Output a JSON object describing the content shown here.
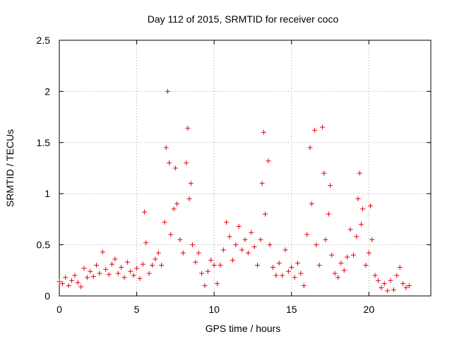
{
  "chart_data": {
    "type": "scatter",
    "title": "Day 112 of 2015, SRMTID for receiver coco",
    "xlabel": "GPS time / hours",
    "ylabel": "SRMTID / TECUs",
    "xlim": [
      0,
      24
    ],
    "ylim": [
      0,
      2.5
    ],
    "xticks": [
      0,
      5,
      10,
      15,
      20
    ],
    "xtick_labels": [
      "0",
      "5",
      "10",
      "15",
      "20"
    ],
    "yticks": [
      0,
      0.5,
      1,
      1.5,
      2,
      2.5
    ],
    "ytick_labels": [
      "0",
      "0.5",
      "1",
      "1.5",
      "2",
      "2.5"
    ],
    "grid": true,
    "marker": "+",
    "series": [
      {
        "name": "SRMTID",
        "color": "#e8000b",
        "points": [
          [
            0.0,
            0.14
          ],
          [
            0.2,
            0.12
          ],
          [
            0.4,
            0.18
          ],
          [
            0.6,
            0.1
          ],
          [
            0.8,
            0.15
          ],
          [
            1.0,
            0.2
          ],
          [
            1.2,
            0.13
          ],
          [
            1.4,
            0.09
          ],
          [
            1.6,
            0.27
          ],
          [
            1.8,
            0.18
          ],
          [
            2.0,
            0.24
          ],
          [
            2.2,
            0.19
          ],
          [
            2.4,
            0.3
          ],
          [
            2.6,
            0.22
          ],
          [
            2.8,
            0.43
          ],
          [
            3.0,
            0.26
          ],
          [
            3.2,
            0.21
          ],
          [
            3.4,
            0.31
          ],
          [
            3.6,
            0.36
          ],
          [
            3.8,
            0.22
          ],
          [
            4.0,
            0.28
          ],
          [
            4.2,
            0.18
          ],
          [
            4.4,
            0.33
          ],
          [
            4.6,
            0.24
          ],
          [
            4.8,
            0.2
          ],
          [
            5.0,
            0.27
          ],
          [
            5.2,
            0.17
          ],
          [
            5.4,
            0.31
          ],
          [
            5.5,
            0.82
          ],
          [
            5.6,
            0.52
          ],
          [
            5.8,
            0.22
          ],
          [
            6.0,
            0.3
          ],
          [
            6.2,
            0.36
          ],
          [
            6.4,
            0.42
          ],
          [
            6.6,
            0.3
          ],
          [
            6.8,
            0.72
          ],
          [
            6.9,
            1.45
          ],
          [
            7.0,
            2.0
          ],
          [
            7.1,
            1.3
          ],
          [
            7.2,
            0.6
          ],
          [
            7.4,
            0.85
          ],
          [
            7.5,
            1.25
          ],
          [
            7.6,
            0.9
          ],
          [
            7.8,
            0.55
          ],
          [
            8.0,
            0.42
          ],
          [
            8.2,
            1.3
          ],
          [
            8.3,
            1.64
          ],
          [
            8.4,
            0.95
          ],
          [
            8.5,
            1.1
          ],
          [
            8.6,
            0.5
          ],
          [
            8.8,
            0.33
          ],
          [
            9.0,
            0.42
          ],
          [
            9.2,
            0.22
          ],
          [
            9.4,
            0.1
          ],
          [
            9.6,
            0.24
          ],
          [
            9.8,
            0.35
          ],
          [
            10.0,
            0.3
          ],
          [
            10.2,
            0.12
          ],
          [
            10.4,
            0.3
          ],
          [
            10.6,
            0.45
          ],
          [
            10.8,
            0.72
          ],
          [
            11.0,
            0.58
          ],
          [
            11.2,
            0.35
          ],
          [
            11.4,
            0.5
          ],
          [
            11.6,
            0.68
          ],
          [
            11.8,
            0.45
          ],
          [
            12.0,
            0.55
          ],
          [
            12.2,
            0.42
          ],
          [
            12.4,
            0.62
          ],
          [
            12.6,
            0.48
          ],
          [
            12.8,
            0.3
          ],
          [
            13.0,
            0.55
          ],
          [
            13.1,
            1.1
          ],
          [
            13.2,
            1.6
          ],
          [
            13.3,
            0.8
          ],
          [
            13.5,
            1.32
          ],
          [
            13.6,
            0.5
          ],
          [
            13.8,
            0.28
          ],
          [
            14.0,
            0.2
          ],
          [
            14.2,
            0.32
          ],
          [
            14.4,
            0.2
          ],
          [
            14.6,
            0.45
          ],
          [
            14.8,
            0.24
          ],
          [
            15.0,
            0.28
          ],
          [
            15.2,
            0.18
          ],
          [
            15.4,
            0.32
          ],
          [
            15.6,
            0.22
          ],
          [
            15.8,
            0.1
          ],
          [
            16.0,
            0.6
          ],
          [
            16.2,
            1.45
          ],
          [
            16.3,
            0.9
          ],
          [
            16.5,
            1.62
          ],
          [
            16.6,
            0.5
          ],
          [
            16.8,
            0.3
          ],
          [
            17.0,
            1.65
          ],
          [
            17.1,
            1.2
          ],
          [
            17.2,
            0.55
          ],
          [
            17.4,
            0.8
          ],
          [
            17.5,
            1.08
          ],
          [
            17.6,
            0.4
          ],
          [
            17.8,
            0.22
          ],
          [
            18.0,
            0.18
          ],
          [
            18.2,
            0.32
          ],
          [
            18.4,
            0.25
          ],
          [
            18.6,
            0.38
          ],
          [
            18.8,
            0.65
          ],
          [
            19.0,
            0.4
          ],
          [
            19.2,
            0.58
          ],
          [
            19.3,
            0.95
          ],
          [
            19.4,
            1.2
          ],
          [
            19.5,
            0.7
          ],
          [
            19.6,
            0.85
          ],
          [
            19.8,
            0.3
          ],
          [
            20.0,
            0.42
          ],
          [
            20.1,
            0.88
          ],
          [
            20.2,
            0.55
          ],
          [
            20.4,
            0.2
          ],
          [
            20.6,
            0.15
          ],
          [
            20.8,
            0.08
          ],
          [
            21.0,
            0.12
          ],
          [
            21.2,
            0.05
          ],
          [
            21.4,
            0.15
          ],
          [
            21.6,
            0.06
          ],
          [
            21.8,
            0.2
          ],
          [
            22.0,
            0.28
          ],
          [
            22.2,
            0.12
          ],
          [
            22.4,
            0.08
          ],
          [
            22.6,
            0.1
          ]
        ]
      }
    ]
  }
}
